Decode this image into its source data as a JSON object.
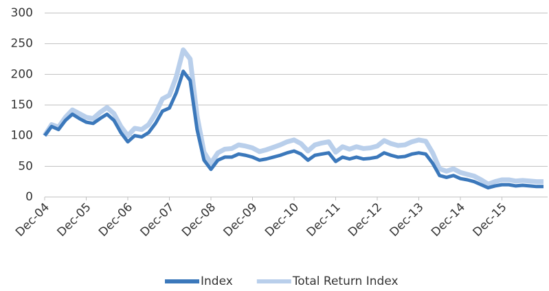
{
  "chart_data": {
    "type": "line",
    "categories": [
      "Dec-04",
      null,
      null,
      null,
      null,
      null,
      "Dec-05",
      null,
      null,
      null,
      null,
      null,
      "Dec-06",
      null,
      null,
      null,
      null,
      null,
      "Dec-07",
      null,
      null,
      null,
      null,
      null,
      "Dec-08",
      null,
      null,
      null,
      null,
      null,
      "Dec-09",
      null,
      null,
      null,
      null,
      null,
      "Dec-10",
      null,
      null,
      null,
      null,
      null,
      "Dec-11",
      null,
      null,
      null,
      null,
      null,
      "Dec-12",
      null,
      null,
      null,
      null,
      null,
      "Dec-13",
      null,
      null,
      null,
      null,
      null,
      "Dec-14",
      null,
      null,
      null,
      null,
      null,
      "Dec-15",
      null,
      null,
      null,
      null,
      null,
      null
    ],
    "series": [
      {
        "name": "Total Return Index",
        "color": "#b9cfeb",
        "values": [
          100,
          118,
          114,
          130,
          142,
          136,
          130,
          128,
          138,
          146,
          136,
          115,
          100,
          112,
          110,
          118,
          136,
          160,
          166,
          196,
          240,
          225,
          132,
          73,
          55,
          72,
          78,
          79,
          85,
          83,
          80,
          74,
          77,
          81,
          85,
          90,
          93,
          87,
          75,
          85,
          88,
          90,
          73,
          82,
          78,
          82,
          79,
          80,
          83,
          92,
          87,
          84,
          85,
          90,
          93,
          91,
          72,
          46,
          42,
          46,
          40,
          37,
          34,
          28,
          21,
          25,
          28,
          28,
          26,
          27,
          26,
          25,
          25
        ]
      },
      {
        "name": "Index",
        "color": "#3b78bb",
        "values": [
          100,
          115,
          110,
          125,
          135,
          128,
          122,
          120,
          128,
          135,
          125,
          105,
          90,
          100,
          98,
          105,
          120,
          140,
          145,
          170,
          205,
          190,
          110,
          60,
          45,
          60,
          65,
          65,
          70,
          68,
          65,
          60,
          62,
          65,
          68,
          72,
          75,
          70,
          60,
          68,
          70,
          72,
          58,
          65,
          62,
          65,
          62,
          63,
          65,
          72,
          68,
          65,
          66,
          70,
          72,
          70,
          55,
          35,
          32,
          35,
          30,
          28,
          25,
          20,
          15,
          18,
          20,
          20,
          18,
          19,
          18,
          17,
          17
        ]
      }
    ],
    "legend_order": [
      "Index",
      "Total Return Index"
    ],
    "ylim": [
      0,
      300
    ],
    "yticks": [
      0,
      50,
      100,
      150,
      200,
      250,
      300
    ],
    "grid": true,
    "legend": "bottom"
  }
}
